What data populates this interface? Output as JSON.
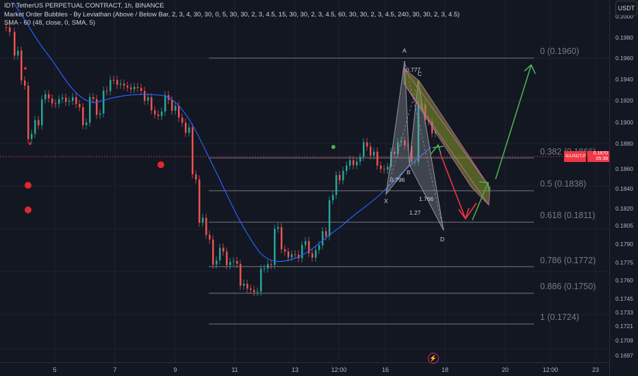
{
  "legend": {
    "symbol_line": "IDT TetherUS PERPETUAL CONTRACT, 1h, BINANCE",
    "indicator_1": "Market Order Bubbles - By Leviathan (Above / Below Bar, 2, 3, 4, 30, 30, 0, 5, 30, 30, 2, 3, 4.5, 15, 30, 30, 2, 3, 4.5, 60, 30, 30, 2, 3, 4.5, 240, 30, 30, 2, 3, 4.5)",
    "indicator_2": "SMA - 60 (48, close, 0, SMA, 5)"
  },
  "currency_button": "USDT",
  "price_axis": [
    "0.2000",
    "0.1980",
    "0.1960",
    "0.1940",
    "0.1920",
    "0.1900",
    "0.1880",
    "0.1860",
    "0.1840",
    "0.1820",
    "0.1805",
    "0.1790",
    "0.1775",
    "0.1760",
    "0.1745",
    "0.1733",
    "0.1721",
    "0.1709",
    "0.1697"
  ],
  "time_axis": [
    "5",
    "7",
    "9",
    "11",
    "13",
    "12:00",
    "16",
    "18",
    "20",
    "12:00",
    "23"
  ],
  "current_price": {
    "symbol": "IDUSDT.P",
    "price": "0.1870",
    "countdown": "05:39",
    "color": "#f23645"
  },
  "fib_levels": [
    {
      "label": "0 (0.1960)",
      "value": 0.196
    },
    {
      "label": "0.382 (0.1866)",
      "value": 0.1866
    },
    {
      "label": "0.5 (0.1838)",
      "value": 0.1838
    },
    {
      "label": "0.618 (0.1811)",
      "value": 0.1811
    },
    {
      "label": "0.786 (0.1772)",
      "value": 0.1772
    },
    {
      "label": "0.886 (0.1750)",
      "value": 0.175
    },
    {
      "label": "1 (0.1724)",
      "value": 0.1724
    }
  ],
  "harmonic": {
    "points": [
      "X",
      "A",
      "B",
      "C",
      "D"
    ],
    "ratios": [
      "0.777",
      "0.796",
      "1.766",
      "1.27"
    ]
  },
  "colors": {
    "background": "#131722",
    "up": "#26a69a",
    "down": "#ef5350",
    "sma": "#2962ff",
    "bubble": "#e0282e",
    "channel": "#8b9a2a",
    "arrow_up": "#4caf50",
    "arrow_down": "#f23645",
    "pattern": "#9598a1",
    "fib": "#787b86"
  }
}
